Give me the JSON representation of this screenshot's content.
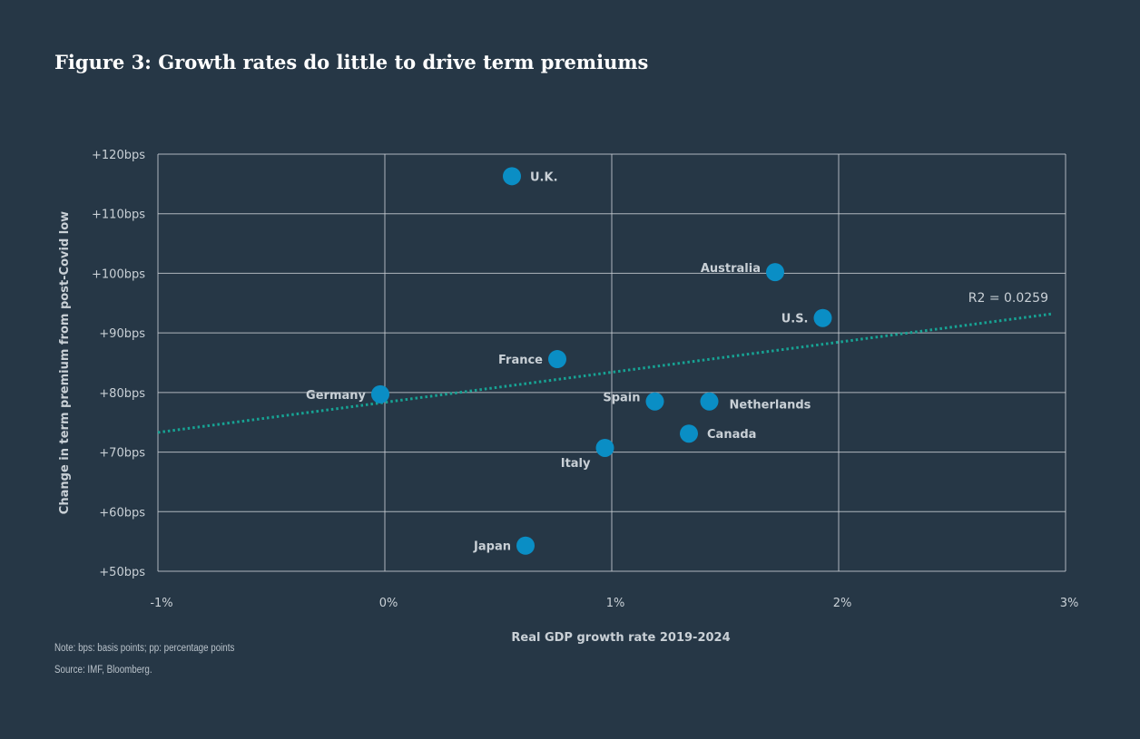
{
  "title": "Figure 3: Growth rates do little to drive term premiums",
  "note": "Note: bps: basis points; pp: percentage points",
  "source": "Source: IMF, Bloomberg.",
  "colors": {
    "background": "#263746",
    "point": "#0a8ec5",
    "trend": "#17a394",
    "grid": "#c8cdd2",
    "text": "#c9d0d6"
  },
  "chart_data": {
    "type": "scatter",
    "title": "Figure 3: Growth rates do little to drive term premiums",
    "xlabel": "Real GDP growth rate 2019-2024",
    "ylabel": "Change in term premium from post-Covid low",
    "xlim": [
      -1,
      3
    ],
    "ylim": [
      50,
      120
    ],
    "xticks": [
      -1,
      0,
      1,
      2,
      3
    ],
    "xtick_labels": [
      "-1%",
      "0%",
      "1%",
      "2%",
      "3%"
    ],
    "yticks": [
      50,
      60,
      70,
      80,
      90,
      100,
      110,
      120
    ],
    "ytick_labels": [
      "+50bps",
      "+60bps",
      "+70bps",
      "+80bps",
      "+90bps",
      "+100bps",
      "+110bps",
      "+120bps"
    ],
    "grid": true,
    "points": [
      {
        "label": "U.K.",
        "x": 0.56,
        "y": 116.3,
        "label_side": "right"
      },
      {
        "label": "Australia",
        "x": 1.72,
        "y": 100.2,
        "label_side": "left"
      },
      {
        "label": "U.S.",
        "x": 1.93,
        "y": 92.5,
        "label_side": "left"
      },
      {
        "label": "France",
        "x": 0.76,
        "y": 85.6,
        "label_side": "left"
      },
      {
        "label": "Germany",
        "x": -0.02,
        "y": 79.7,
        "label_side": "left"
      },
      {
        "label": "Spain",
        "x": 1.19,
        "y": 78.5,
        "label_side": "left"
      },
      {
        "label": "Netherlands",
        "x": 1.43,
        "y": 78.5,
        "label_side": "right-below"
      },
      {
        "label": "Canada",
        "x": 1.34,
        "y": 73.1,
        "label_side": "right"
      },
      {
        "label": "Italy",
        "x": 0.97,
        "y": 70.7,
        "label_side": "left-below"
      },
      {
        "label": "Japan",
        "x": 0.62,
        "y": 54.3,
        "label_side": "left"
      }
    ],
    "trendline": {
      "x_start": -1,
      "x_end": 2.94,
      "slope": 5.05,
      "intercept": 78.35,
      "style": "dotted"
    },
    "annotation": "R2 = 0.0259"
  }
}
